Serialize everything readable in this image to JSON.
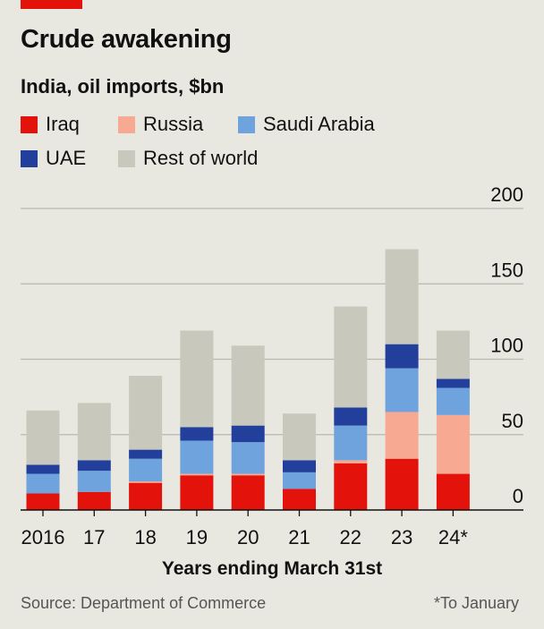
{
  "title": "Crude awakening",
  "subtitle": "India, oil imports, $bn",
  "source": "Source: Department of Commerce",
  "footnote": "*To January",
  "colors": {
    "Iraq": "#e3120b",
    "Russia": "#f7a992",
    "Saudi Arabia": "#6fa3dd",
    "UAE": "#233f9c",
    "Rest of world": "#c8c8bd",
    "accent": "#e3120b"
  },
  "chart_data": {
    "type": "bar",
    "stacked": true,
    "title": "Crude awakening",
    "subtitle": "India, oil imports, $bn",
    "xlabel": "Years ending March 31st",
    "ylabel": "",
    "ylim": [
      0,
      200
    ],
    "yticks": [
      0,
      50,
      100,
      150,
      200
    ],
    "grid": true,
    "legend_position": "top-left",
    "categories": [
      "2016",
      "17",
      "18",
      "19",
      "20",
      "21",
      "22",
      "23",
      "24*"
    ],
    "series": [
      {
        "name": "Iraq",
        "values": [
          11,
          12,
          18,
          23,
          23,
          14,
          31,
          34,
          24
        ]
      },
      {
        "name": "Russia",
        "values": [
          0,
          0,
          1,
          1,
          1,
          0,
          2,
          31,
          39
        ]
      },
      {
        "name": "Saudi Arabia",
        "values": [
          13,
          14,
          15,
          22,
          21,
          11,
          23,
          29,
          18
        ]
      },
      {
        "name": "UAE",
        "values": [
          6,
          7,
          6,
          9,
          11,
          8,
          12,
          16,
          6
        ]
      },
      {
        "name": "Rest of world",
        "values": [
          36,
          38,
          49,
          64,
          53,
          31,
          67,
          63,
          32
        ]
      }
    ]
  }
}
